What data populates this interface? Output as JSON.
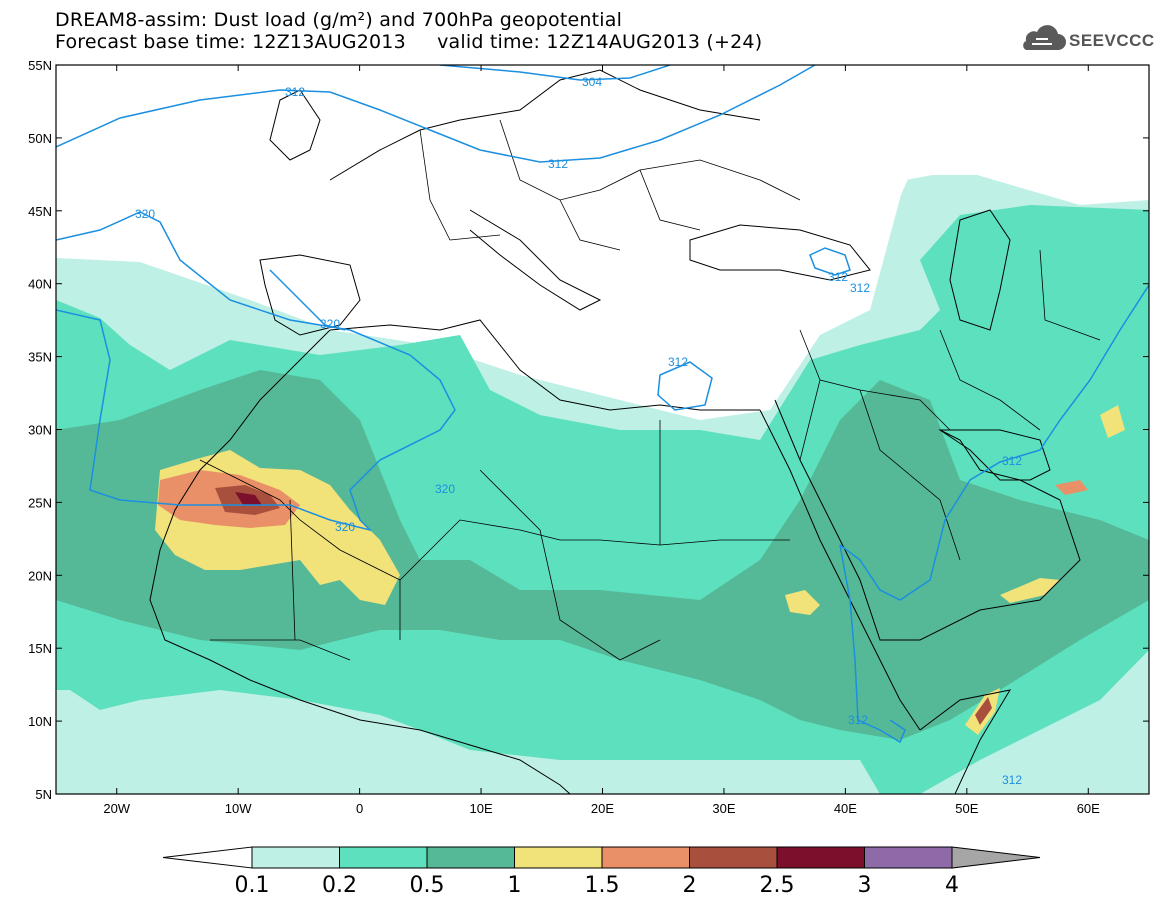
{
  "title": {
    "line1": "DREAM8-assim: Dust load (g/m²) and 700hPa geopotential",
    "line2": "Forecast base time: 12Z13AUG2013     valid time: 12Z14AUG2013 (+24)"
  },
  "logo": {
    "text": "SEEVCCC",
    "icon": "cloud-icon"
  },
  "map": {
    "lon_range": [
      -25,
      65
    ],
    "lat_range": [
      5,
      55
    ],
    "lat_ticks": [
      "5N",
      "10N",
      "15N",
      "20N",
      "25N",
      "30N",
      "35N",
      "40N",
      "45N",
      "50N",
      "55N"
    ],
    "lon_ticks": [
      "20W",
      "10W",
      "0",
      "10E",
      "20E",
      "30E",
      "40E",
      "50E",
      "60E"
    ],
    "contour_labels": [
      "304",
      "312",
      "312",
      "320",
      "320",
      "320",
      "320",
      "312",
      "312",
      "312",
      "312",
      "312",
      "312"
    ],
    "colors": {
      "contour": "#1b8fe0",
      "coast": "#000000"
    }
  },
  "colorbar": {
    "labels": [
      "0.1",
      "0.2",
      "0.5",
      "1",
      "1.5",
      "2",
      "2.5",
      "3",
      "4"
    ],
    "colors": [
      "#bff0e6",
      "#5de0bd",
      "#55b997",
      "#f2e27a",
      "#ea9068",
      "#a8503d",
      "#7b0f2c",
      "#8e6ba8",
      "#a6a6a6"
    ]
  }
}
